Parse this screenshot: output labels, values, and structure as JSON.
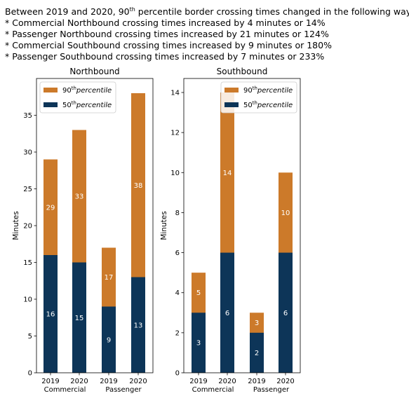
{
  "headline": {
    "intro_prefix": "Between 2019 and 2020, 90",
    "intro_sup": "th",
    "intro_suffix": " percentile border crossing times changed in the following ways:",
    "bullets": [
      "* Commercial Northbound crossing times increased by 4 minutes or 14%",
      "* Passenger Northbound crossing times increased by 21 minutes or 124%",
      "* Commercial Southbound crossing times increased by 9 minutes or 180%",
      "* Passenger Southbound crossing times increased by 7 minutes or 233%"
    ]
  },
  "colors": {
    "p90": "#cc7a2a",
    "p50": "#0d3558",
    "label": "#ffffff"
  },
  "chart_data": [
    {
      "type": "bar",
      "stacked": "overlay",
      "title": "Northbound",
      "ylabel": "Minutes",
      "ylim": [
        0,
        40
      ],
      "yticks": [
        0,
        5,
        10,
        15,
        20,
        25,
        30,
        35
      ],
      "categories": [
        "2019",
        "2020",
        "2019",
        "2020"
      ],
      "groups": [
        "Commercial",
        "Passenger"
      ],
      "series": [
        {
          "name": "90th percentile",
          "name_base": "90",
          "name_sup": "th",
          "name_rest": "percentile",
          "values": [
            29,
            33,
            17,
            38
          ]
        },
        {
          "name": "50th percentile",
          "name_base": "50",
          "name_sup": "th",
          "name_rest": "percentile",
          "values": [
            16,
            15,
            9,
            13
          ]
        }
      ],
      "legend": "top-left",
      "grid": false
    },
    {
      "type": "bar",
      "stacked": "overlay",
      "title": "Southbound",
      "ylabel": "Minutes",
      "ylim": [
        0,
        14.7
      ],
      "yticks": [
        0,
        2,
        4,
        6,
        8,
        10,
        12,
        14
      ],
      "categories": [
        "2019",
        "2020",
        "2019",
        "2020"
      ],
      "groups": [
        "Commercial",
        "Passenger"
      ],
      "series": [
        {
          "name": "90th percentile",
          "name_base": "90",
          "name_sup": "th",
          "name_rest": "percentile",
          "values": [
            5,
            14,
            3,
            10
          ]
        },
        {
          "name": "50th percentile",
          "name_base": "50",
          "name_sup": "th",
          "name_rest": "percentile",
          "values": [
            3,
            6,
            2,
            6
          ]
        }
      ],
      "legend": "top-right",
      "grid": false
    }
  ]
}
